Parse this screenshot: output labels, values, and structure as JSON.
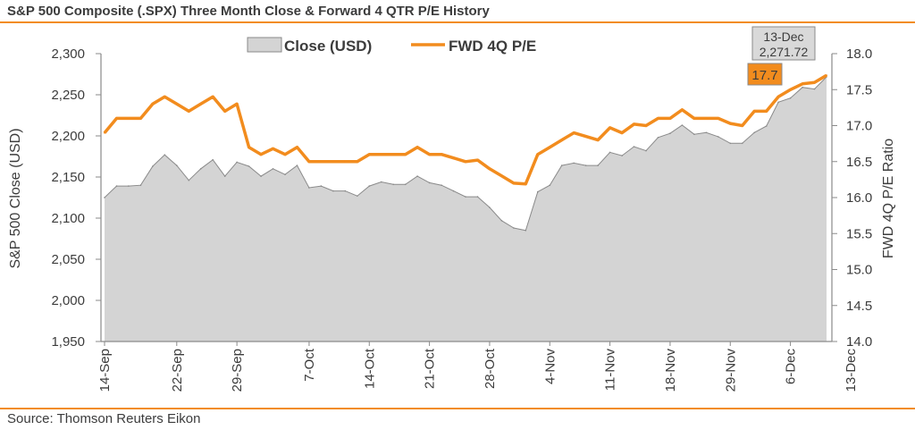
{
  "title": "S&P 500 Composite (.SPX) Three Month Close & Forward 4 QTR P/E History",
  "source": "Source: Thomson Reuters Eikon",
  "colors": {
    "accent": "#f28c1e",
    "area_fill": "#d4d4d4",
    "area_stroke": "#8a8a8a",
    "text": "#3c3c3c"
  },
  "chart_data": {
    "type": "area",
    "title": "S&P 500 Composite (.SPX) Three Month Close & Forward 4 QTR P/E History",
    "ylabel": "S&P 500 Close (USD)",
    "y2label": "FWD 4Q P/E Ratio",
    "ylim": [
      1950,
      2300
    ],
    "y2lim": [
      14.0,
      18.0
    ],
    "y_ticks": [
      "1,950",
      "2,000",
      "2,050",
      "2,100",
      "2,150",
      "2,200",
      "2,250",
      "2,300"
    ],
    "y2_ticks": [
      "14.0",
      "14.5",
      "15.0",
      "15.5",
      "16.0",
      "16.5",
      "17.0",
      "17.5",
      "18.0"
    ],
    "x_ticks": [
      {
        "label": "14-Sep",
        "index": 0
      },
      {
        "label": "22-Sep",
        "index": 6
      },
      {
        "label": "29-Sep",
        "index": 11
      },
      {
        "label": "7-Oct",
        "index": 17
      },
      {
        "label": "14-Oct",
        "index": 22
      },
      {
        "label": "21-Oct",
        "index": 27
      },
      {
        "label": "28-Oct",
        "index": 32
      },
      {
        "label": "4-Nov",
        "index": 37
      },
      {
        "label": "11-Nov",
        "index": 42
      },
      {
        "label": "18-Nov",
        "index": 47
      },
      {
        "label": "29-Nov",
        "index": 52
      },
      {
        "label": "6-Dec",
        "index": 57
      },
      {
        "label": "13-Dec",
        "index": 62
      }
    ],
    "legend": {
      "placement": "top-center",
      "items": [
        {
          "label": "Close (USD)",
          "kind": "area"
        },
        {
          "label": "FWD 4Q P/E",
          "kind": "line"
        }
      ]
    },
    "series": [
      {
        "name": "Close (USD)",
        "axis": "left",
        "type": "area",
        "values": [
          2125,
          2139,
          2139,
          2140,
          2163,
          2177,
          2164,
          2146,
          2160,
          2171,
          2151,
          2168,
          2163,
          2151,
          2160,
          2153,
          2164,
          2137,
          2139,
          2133,
          2133,
          2127,
          2139,
          2144,
          2141,
          2141,
          2151,
          2143,
          2140,
          2133,
          2126,
          2126,
          2113,
          2097,
          2088,
          2085,
          2132,
          2140,
          2164,
          2167,
          2164,
          2164,
          2180,
          2176,
          2187,
          2182,
          2198,
          2203,
          2213,
          2202,
          2204,
          2199,
          2191,
          2191,
          2204,
          2212,
          2241,
          2246,
          2259,
          2257,
          2271.72
        ]
      },
      {
        "name": "FWD 4Q P/E",
        "axis": "right",
        "type": "line",
        "values": [
          16.9,
          17.1,
          17.1,
          17.1,
          17.3,
          17.4,
          17.3,
          17.2,
          17.3,
          17.4,
          17.2,
          17.3,
          16.7,
          16.6,
          16.68,
          16.6,
          16.7,
          16.5,
          16.5,
          16.5,
          16.5,
          16.5,
          16.6,
          16.6,
          16.6,
          16.6,
          16.7,
          16.6,
          16.6,
          16.55,
          16.5,
          16.52,
          16.4,
          16.3,
          16.2,
          16.19,
          16.6,
          16.7,
          16.8,
          16.9,
          16.85,
          16.8,
          16.97,
          16.9,
          17.02,
          17.0,
          17.1,
          17.1,
          17.22,
          17.1,
          17.1,
          17.1,
          17.03,
          17.0,
          17.2,
          17.2,
          17.4,
          17.5,
          17.58,
          17.6,
          17.7
        ]
      }
    ],
    "annotations": [
      {
        "series": "Close (USD)",
        "date": "13-Dec",
        "value": "2,271.72"
      },
      {
        "series": "FWD 4Q P/E",
        "value": "17.7"
      }
    ],
    "grid": false
  }
}
